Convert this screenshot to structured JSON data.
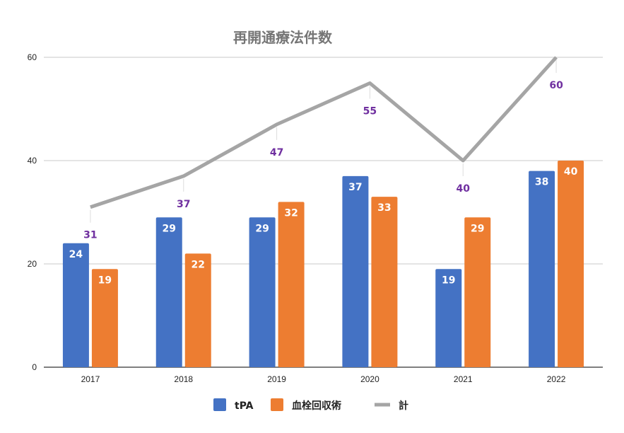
{
  "chart_data": {
    "type": "bar",
    "title": "再開通療法件数",
    "categories": [
      "2017",
      "2018",
      "2019",
      "2020",
      "2021",
      "2022"
    ],
    "ylim": [
      0,
      60
    ],
    "yticks": [
      "0",
      "20",
      "40",
      "60"
    ],
    "grid": true,
    "legend_position": "bottom",
    "series": [
      {
        "name": "tPA",
        "kind": "bar",
        "color": "#4472c4",
        "values": [
          24,
          29,
          29,
          37,
          19,
          38
        ]
      },
      {
        "name": "血栓回収術",
        "kind": "bar",
        "color": "#ed7d31",
        "values": [
          19,
          22,
          32,
          33,
          29,
          40
        ]
      },
      {
        "name": "計",
        "kind": "line",
        "color": "#a5a5a5",
        "label_color": "#7030a0",
        "values": [
          31,
          37,
          47,
          55,
          40,
          60
        ]
      }
    ]
  }
}
